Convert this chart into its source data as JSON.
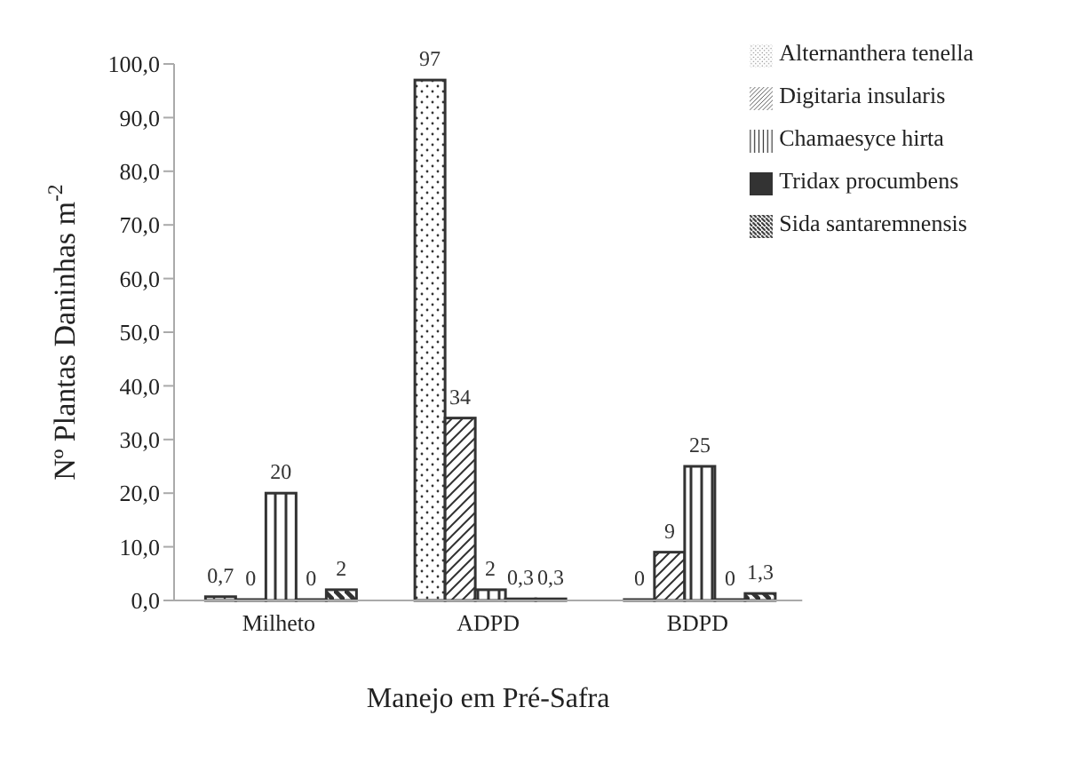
{
  "chart_data": {
    "type": "bar",
    "xlabel": "Manejo em Pré-Safra",
    "ylabel": "Nº Plantas Daninhas m$^{-2}$",
    "categories": [
      "Milheto",
      "ADPD",
      "BDPD"
    ],
    "series": [
      {
        "name": "Alternanthera  tenella",
        "color": "#333333",
        "values": [
          0.7,
          97,
          0
        ],
        "value_labels": [
          "0,7",
          "97",
          "0"
        ]
      },
      {
        "name": "Digitaria insularis",
        "color": "#333333",
        "values": [
          0,
          34,
          9
        ],
        "value_labels": [
          "0",
          "34",
          "9"
        ]
      },
      {
        "name": "Chamaesyce hirta",
        "color": "#333333",
        "values": [
          20,
          2,
          25
        ],
        "value_labels": [
          "20",
          "2",
          "25"
        ]
      },
      {
        "name": "Tridax procumbens",
        "color": "#333333",
        "values": [
          0,
          0.3,
          0
        ],
        "value_labels": [
          "0",
          "0,3",
          "0"
        ]
      },
      {
        "name": "Sida santaremnensis",
        "color": "#333333",
        "values": [
          2,
          0.3,
          1.3
        ],
        "value_labels": [
          "2",
          "0,3",
          "1,3"
        ]
      }
    ],
    "ylim": [
      0,
      100
    ],
    "yticks": [
      {
        "value": 0,
        "label": "0,0"
      },
      {
        "value": 10,
        "label": "10,0"
      },
      {
        "value": 20,
        "label": "20,0"
      },
      {
        "value": 30,
        "label": "30,0"
      },
      {
        "value": 40,
        "label": "40,0"
      },
      {
        "value": 50,
        "label": "50,0"
      },
      {
        "value": 60,
        "label": "60,0"
      },
      {
        "value": 70,
        "label": "70,0"
      },
      {
        "value": 80,
        "label": "80,0"
      },
      {
        "value": 90,
        "label": "90,0"
      },
      {
        "value": 100,
        "label": "100,0"
      }
    ],
    "grid": false,
    "legend": "top right"
  }
}
